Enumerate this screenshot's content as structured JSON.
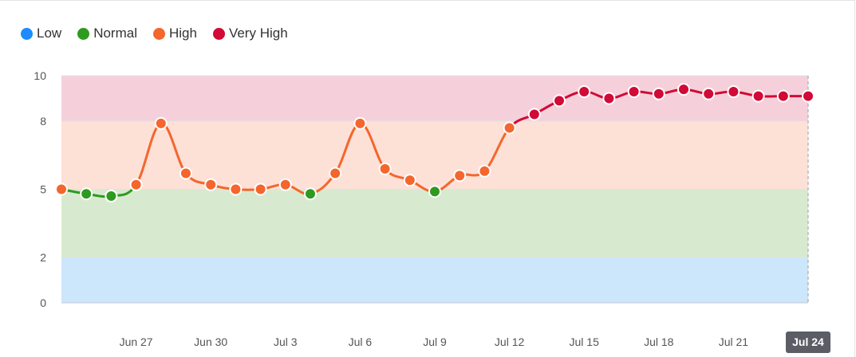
{
  "chart_data": {
    "type": "line",
    "legend": [
      {
        "name": "Low",
        "color": "#1a8cff"
      },
      {
        "name": "Normal",
        "color": "#2e9a1f"
      },
      {
        "name": "High",
        "color": "#f4662d"
      },
      {
        "name": "Very High",
        "color": "#d10a36"
      }
    ],
    "bands": [
      {
        "level": "Low",
        "from": 0,
        "to": 2,
        "fill": "#cce6fb"
      },
      {
        "level": "Normal",
        "from": 2,
        "to": 5,
        "fill": "#d7eacf"
      },
      {
        "level": "High",
        "from": 5,
        "to": 8,
        "fill": "#fde0d6"
      },
      {
        "level": "Very High",
        "from": 8,
        "to": 10,
        "fill": "#f5d0da"
      }
    ],
    "ylim": [
      0,
      10
    ],
    "yticks": [
      0,
      2,
      5,
      8,
      10
    ],
    "x_tick_labels": [
      "Jun 27",
      "Jun 30",
      "Jul 3",
      "Jul 6",
      "Jul 9",
      "Jul 12",
      "Jul 15",
      "Jul 18",
      "Jul 21",
      "Jul 24"
    ],
    "highlighted_tick": "Jul 24",
    "x": [
      "Jun 24",
      "Jun 25",
      "Jun 26",
      "Jun 27",
      "Jun 28",
      "Jun 29",
      "Jun 30",
      "Jul 1",
      "Jul 2",
      "Jul 3",
      "Jul 4",
      "Jul 5",
      "Jul 6",
      "Jul 7",
      "Jul 8",
      "Jul 9",
      "Jul 10",
      "Jul 11",
      "Jul 12",
      "Jul 13",
      "Jul 14",
      "Jul 15",
      "Jul 16",
      "Jul 17",
      "Jul 18",
      "Jul 19",
      "Jul 20",
      "Jul 21",
      "Jul 22",
      "Jul 23",
      "Jul 24"
    ],
    "values": [
      5.0,
      4.8,
      4.7,
      5.2,
      7.9,
      5.7,
      5.2,
      5.0,
      5.0,
      5.2,
      4.8,
      5.7,
      7.9,
      5.9,
      5.4,
      4.9,
      5.6,
      5.8,
      7.7,
      8.3,
      8.9,
      9.3,
      9.0,
      9.3,
      9.2,
      9.4,
      9.2,
      9.3,
      9.1,
      9.1,
      9.1
    ],
    "colors": {
      "Low": "#1a8cff",
      "Normal": "#2e9a1f",
      "High": "#f4662d",
      "Very High": "#d10a36"
    }
  }
}
